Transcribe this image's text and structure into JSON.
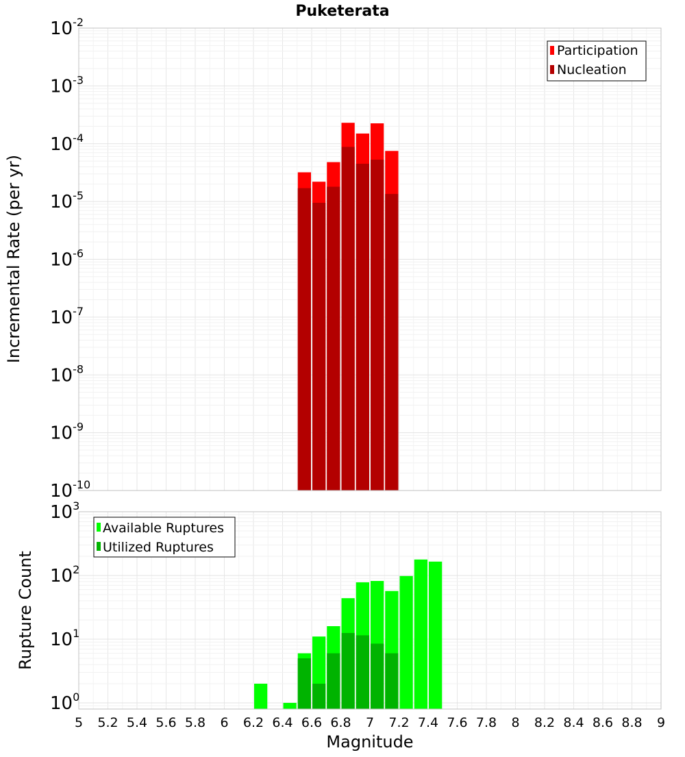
{
  "chart_data": [
    {
      "type": "bar",
      "title": "Puketerata",
      "xlabel": "",
      "ylabel": "Incremental Rate (per yr)",
      "y_scale": "log",
      "xlim": [
        5,
        9
      ],
      "ylim": [
        1e-10,
        0.01
      ],
      "y_ticks": [
        {
          "base": "10",
          "exp": "-10",
          "value": 1e-10
        },
        {
          "base": "10",
          "exp": "-9",
          "value": 1e-09
        },
        {
          "base": "10",
          "exp": "-8",
          "value": 1e-08
        },
        {
          "base": "10",
          "exp": "-7",
          "value": 1e-07
        },
        {
          "base": "10",
          "exp": "-6",
          "value": 1e-06
        },
        {
          "base": "10",
          "exp": "-5",
          "value": 1e-05
        },
        {
          "base": "10",
          "exp": "-4",
          "value": 0.0001
        },
        {
          "base": "10",
          "exp": "-3",
          "value": 0.001
        },
        {
          "base": "10",
          "exp": "-2",
          "value": 0.01
        }
      ],
      "legend": {
        "position": "top-right"
      },
      "grid": true,
      "bin_width": 0.1,
      "x": [
        6.55,
        6.65,
        6.75,
        6.85,
        6.95,
        7.05,
        7.15
      ],
      "series": [
        {
          "name": "Participation",
          "color": "#ff0000",
          "values": [
            3.2e-05,
            2.2e-05,
            4.8e-05,
            0.00023,
            0.00015,
            0.000225,
            7.5e-05
          ]
        },
        {
          "name": "Nucleation",
          "color": "#b30000",
          "values": [
            1.7e-05,
            9.5e-06,
            1.8e-05,
            8.8e-05,
            4.5e-05,
            5.3e-05,
            1.35e-05
          ]
        }
      ]
    },
    {
      "type": "bar",
      "title": "",
      "xlabel": "Magnitude",
      "ylabel": "Rupture Count",
      "y_scale": "log",
      "xlim": [
        5,
        9
      ],
      "ylim": [
        0.8,
        1000
      ],
      "x_ticks": [
        "5",
        "5.2",
        "5.4",
        "5.6",
        "5.8",
        "6",
        "6.2",
        "6.4",
        "6.6",
        "6.8",
        "7",
        "7.2",
        "7.4",
        "7.6",
        "7.8",
        "8",
        "8.2",
        "8.4",
        "8.6",
        "8.8",
        "9"
      ],
      "y_ticks": [
        {
          "base": "10",
          "exp": "0",
          "value": 1
        },
        {
          "base": "10",
          "exp": "1",
          "value": 10
        },
        {
          "base": "10",
          "exp": "2",
          "value": 100
        },
        {
          "base": "10",
          "exp": "3",
          "value": 1000
        }
      ],
      "legend": {
        "position": "top-left"
      },
      "grid": true,
      "bin_width": 0.1,
      "series": [
        {
          "name": "Available Ruptures",
          "color": "#00ff00",
          "x": [
            6.25,
            6.45,
            6.55,
            6.65,
            6.75,
            6.85,
            6.95,
            7.05,
            7.15,
            7.25,
            7.35,
            7.45
          ],
          "values": [
            2,
            1,
            6,
            11,
            16,
            44,
            78,
            82,
            57,
            98,
            178,
            165
          ]
        },
        {
          "name": "Utilized Ruptures",
          "color": "#00b300",
          "x": [
            6.55,
            6.65,
            6.75,
            6.85,
            6.95,
            7.05,
            7.15
          ],
          "values": [
            5,
            2,
            6,
            12.5,
            11.5,
            8.5,
            6
          ]
        }
      ]
    }
  ]
}
